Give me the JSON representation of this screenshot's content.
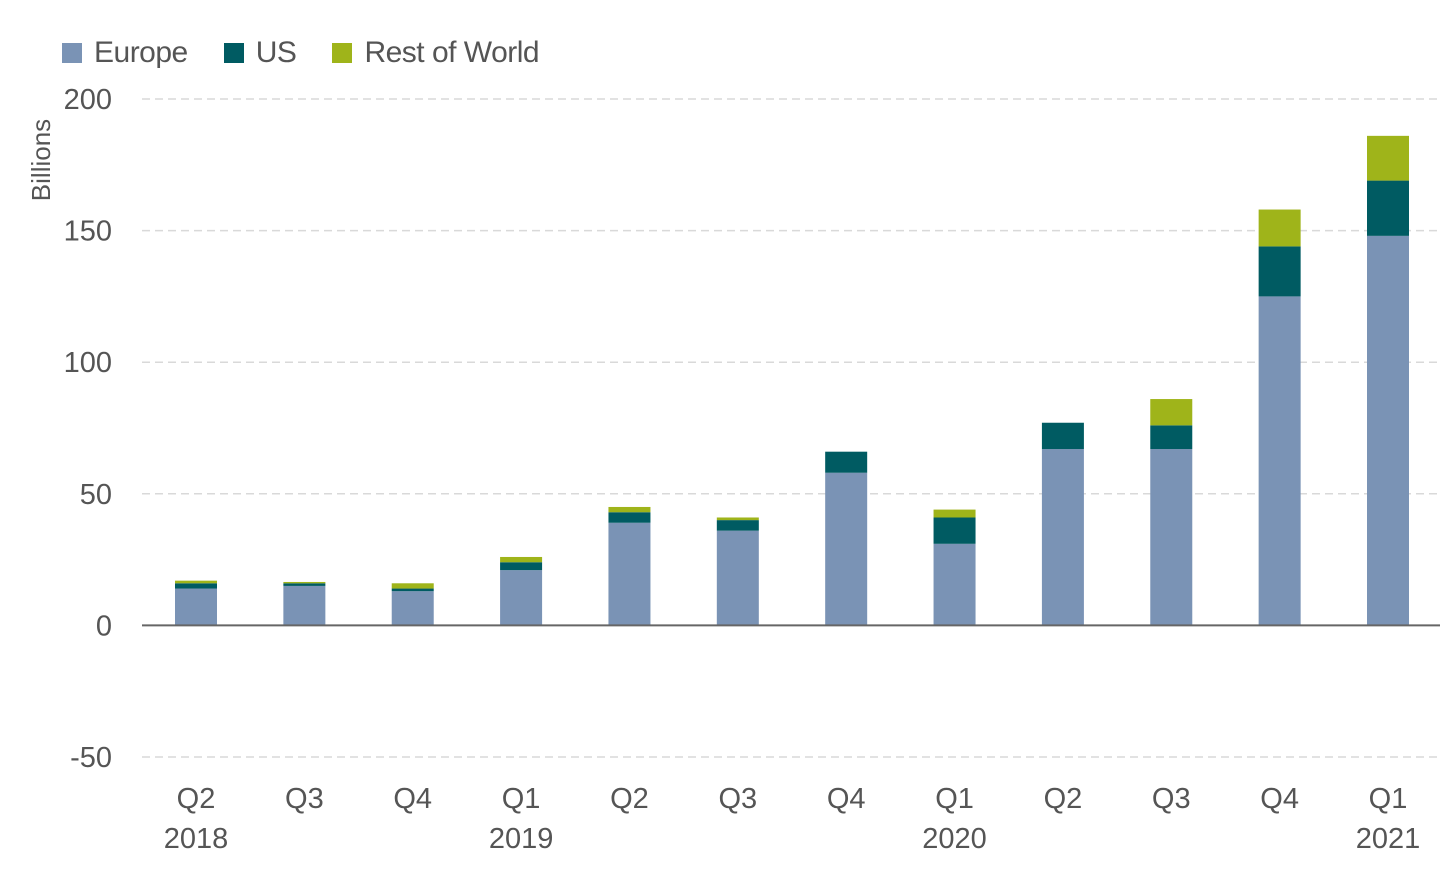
{
  "chart_data": {
    "type": "bar",
    "stacked": true,
    "ylabel": "Billions",
    "xlabel": "",
    "ylim": [
      -50,
      200
    ],
    "yticks": [
      -50,
      0,
      50,
      100,
      150,
      200
    ],
    "grid": true,
    "legend_placement": "top-left",
    "categories": [
      {
        "quarter": "Q2",
        "year": "2018"
      },
      {
        "quarter": "Q3",
        "year": ""
      },
      {
        "quarter": "Q4",
        "year": ""
      },
      {
        "quarter": "Q1",
        "year": "2019"
      },
      {
        "quarter": "Q2",
        "year": ""
      },
      {
        "quarter": "Q3",
        "year": ""
      },
      {
        "quarter": "Q4",
        "year": ""
      },
      {
        "quarter": "Q1",
        "year": "2020"
      },
      {
        "quarter": "Q2",
        "year": ""
      },
      {
        "quarter": "Q3",
        "year": ""
      },
      {
        "quarter": "Q4",
        "year": ""
      },
      {
        "quarter": "Q1",
        "year": "2021"
      }
    ],
    "series": [
      {
        "name": "Europe",
        "color": "#7a93b5",
        "values": [
          14,
          15,
          13,
          21,
          39,
          36,
          58,
          31,
          67,
          67,
          125,
          148
        ]
      },
      {
        "name": "US",
        "color": "#005b62",
        "values": [
          2,
          1,
          1,
          3,
          4,
          4,
          8,
          10,
          10,
          9,
          19,
          21
        ]
      },
      {
        "name": "Rest of World",
        "color": "#9fb41a",
        "values": [
          1,
          0.5,
          2,
          2,
          2,
          1,
          0,
          3,
          0,
          10,
          14,
          17
        ]
      }
    ]
  }
}
